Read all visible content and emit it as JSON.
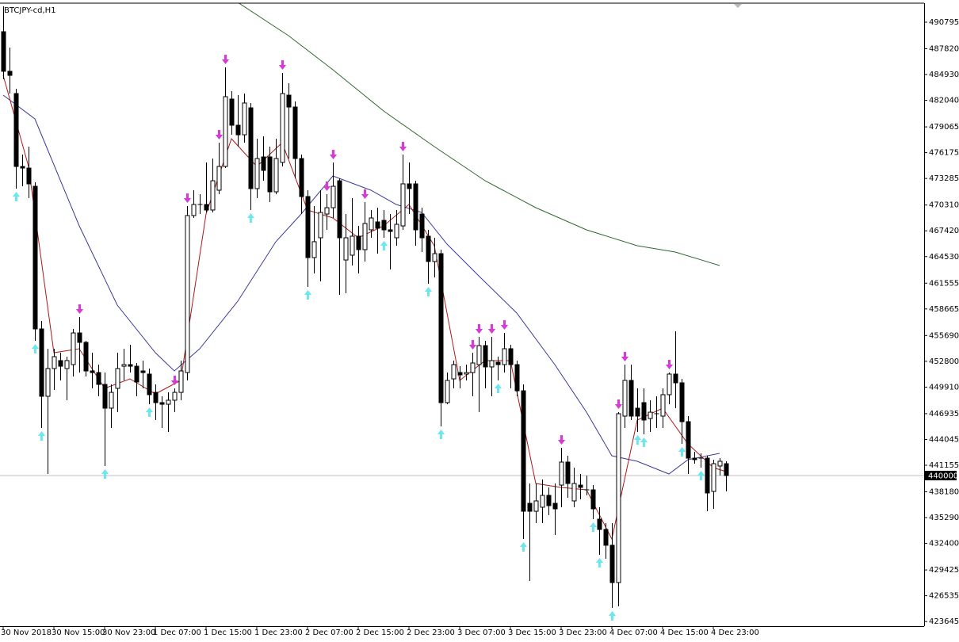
{
  "chart_data": {
    "type": "candlestick",
    "title": "BTCJPY-cd,H1",
    "ylim": [
      423128,
      493280
    ],
    "yticks": [
      490795,
      487820,
      484930,
      482040,
      479065,
      476175,
      473285,
      470310,
      467420,
      464530,
      461555,
      458665,
      455690,
      452800,
      449910,
      446935,
      444045,
      441155,
      438180,
      435290,
      432400,
      429425,
      426535,
      423645
    ],
    "price_line": 440000,
    "xticks": [
      {
        "value": 0,
        "label": "30 Nov 2018"
      },
      {
        "value": 8,
        "label": "30 Nov 15:00"
      },
      {
        "value": 16,
        "label": "30 Nov 23:00"
      },
      {
        "value": 24,
        "label": "1 Dec 07:00"
      },
      {
        "value": 32,
        "label": "1 Dec 15:00"
      },
      {
        "value": 40,
        "label": "1 Dec 23:00"
      },
      {
        "value": 48,
        "label": "2 Dec 07:00"
      },
      {
        "value": 56,
        "label": "2 Dec 15:00"
      },
      {
        "value": 64,
        "label": "2 Dec 23:00"
      },
      {
        "value": 72,
        "label": "3 Dec 07:00"
      },
      {
        "value": 80,
        "label": "3 Dec 15:00"
      },
      {
        "value": 88,
        "label": "3 Dec 23:00"
      },
      {
        "value": 96,
        "label": "4 Dec 07:00"
      },
      {
        "value": 104,
        "label": "4 Dec 15:00"
      },
      {
        "value": 112,
        "label": "4 Dec 23:00"
      }
    ],
    "ohlc": [
      [
        489730,
        492570,
        484400,
        485290
      ],
      [
        485290,
        487950,
        482800,
        484840
      ],
      [
        482800,
        483330,
        472150,
        474630
      ],
      [
        474630,
        475960,
        472410,
        474450
      ],
      [
        474450,
        476850,
        471080,
        472680
      ],
      [
        472410,
        472860,
        455100,
        456430
      ],
      [
        456430,
        457320,
        445330,
        448880
      ],
      [
        448880,
        454210,
        440180,
        451990
      ],
      [
        451990,
        454210,
        449590,
        453320
      ],
      [
        452880,
        453760,
        450660,
        452250
      ],
      [
        451990,
        453320,
        448440,
        452880
      ],
      [
        452430,
        456430,
        451100,
        455980
      ],
      [
        455980,
        457760,
        451540,
        454920
      ],
      [
        454920,
        455100,
        451100,
        451720
      ],
      [
        451720,
        453760,
        449770,
        451540
      ],
      [
        451540,
        452430,
        448880,
        450210
      ],
      [
        450210,
        451540,
        441070,
        447550
      ],
      [
        447550,
        450210,
        445330,
        449320
      ],
      [
        449770,
        453760,
        447100,
        451990
      ],
      [
        452250,
        454210,
        450660,
        452430
      ],
      [
        452430,
        454650,
        451540,
        452250
      ],
      [
        452250,
        452610,
        448880,
        450480
      ],
      [
        451720,
        452880,
        449770,
        451540
      ],
      [
        451370,
        451990,
        447990,
        449060
      ],
      [
        449320,
        450210,
        446220,
        448170
      ],
      [
        448170,
        448880,
        445330,
        447990
      ],
      [
        447990,
        449320,
        444880,
        448440
      ],
      [
        448440,
        449770,
        447100,
        449320
      ],
      [
        449320,
        452880,
        448440,
        451720
      ],
      [
        451540,
        470190,
        450660,
        469130
      ],
      [
        469130,
        471970,
        468860,
        470370
      ],
      [
        470370,
        471520,
        469300,
        470370
      ],
      [
        470370,
        475080,
        469480,
        469750
      ],
      [
        469750,
        475520,
        469480,
        473030
      ],
      [
        471970,
        477300,
        471520,
        474630
      ],
      [
        474630,
        485730,
        474450,
        482450
      ],
      [
        482180,
        483070,
        478180,
        479250
      ],
      [
        479250,
        482620,
        476850,
        478180
      ],
      [
        478180,
        482800,
        477300,
        481740
      ],
      [
        481200,
        481740,
        469750,
        472150
      ],
      [
        472150,
        477740,
        471080,
        475520
      ],
      [
        475700,
        478010,
        473030,
        474190
      ],
      [
        475700,
        476850,
        470640,
        471790
      ],
      [
        471790,
        477740,
        471520,
        475520
      ],
      [
        475080,
        485110,
        474630,
        482800
      ],
      [
        482620,
        483960,
        475520,
        481290
      ],
      [
        481290,
        481910,
        473300,
        475520
      ],
      [
        475520,
        475960,
        469300,
        471260
      ],
      [
        471260,
        471970,
        461130,
        464420
      ],
      [
        464420,
        470190,
        462640,
        466200
      ],
      [
        466640,
        471970,
        461760,
        469480
      ],
      [
        469300,
        471520,
        467530,
        470010
      ],
      [
        470010,
        475080,
        468860,
        472410
      ],
      [
        473030,
        473300,
        460250,
        466640
      ],
      [
        464150,
        469300,
        460420,
        466640
      ],
      [
        464690,
        471080,
        463530,
        466820
      ],
      [
        466820,
        467970,
        462640,
        465310
      ],
      [
        465310,
        470640,
        463980,
        468240
      ],
      [
        467530,
        469750,
        466640,
        468860
      ],
      [
        468420,
        470010,
        464860,
        467710
      ],
      [
        468590,
        469750,
        466640,
        467530
      ],
      [
        467530,
        469300,
        463090,
        467350
      ],
      [
        466640,
        469750,
        465750,
        468150
      ],
      [
        467970,
        475960,
        467530,
        472680
      ],
      [
        472680,
        475080,
        469300,
        472150
      ],
      [
        472680,
        473030,
        465750,
        467530
      ],
      [
        469300,
        470010,
        465040,
        466640
      ],
      [
        466820,
        467530,
        461490,
        463980
      ],
      [
        463980,
        466640,
        462200,
        464860
      ],
      [
        464860,
        465310,
        445510,
        448170
      ],
      [
        448170,
        451540,
        447990,
        450660
      ],
      [
        450830,
        452880,
        449770,
        452430
      ],
      [
        451540,
        452250,
        449770,
        451280
      ],
      [
        451370,
        452430,
        450660,
        451540
      ],
      [
        451540,
        453760,
        448880,
        452610
      ],
      [
        452430,
        455540,
        447100,
        454560
      ],
      [
        454560,
        455100,
        449770,
        452170
      ],
      [
        452170,
        455540,
        448880,
        452880
      ],
      [
        452700,
        453320,
        450660,
        452430
      ],
      [
        452430,
        455980,
        451540,
        454210
      ],
      [
        454210,
        454650,
        449770,
        452430
      ],
      [
        452430,
        452880,
        448880,
        449500
      ],
      [
        449500,
        450210,
        432900,
        436000
      ],
      [
        436890,
        439110,
        428190,
        436000
      ],
      [
        436000,
        439110,
        434670,
        437160
      ],
      [
        436450,
        439560,
        434670,
        437780
      ],
      [
        437780,
        438670,
        435560,
        436630
      ],
      [
        436890,
        439110,
        433340,
        436270
      ],
      [
        438930,
        443110,
        436450,
        441510
      ],
      [
        441510,
        442220,
        437510,
        439110
      ],
      [
        437160,
        440890,
        436450,
        439110
      ],
      [
        438930,
        440180,
        437340,
        438670
      ],
      [
        438400,
        440000,
        437780,
        438400
      ],
      [
        438400,
        438930,
        435120,
        436270
      ],
      [
        435120,
        436450,
        431120,
        433960
      ],
      [
        433960,
        434670,
        430680,
        432190
      ],
      [
        432190,
        434670,
        425170,
        428010
      ],
      [
        428010,
        447100,
        425350,
        446930
      ],
      [
        446660,
        452430,
        445330,
        450660
      ],
      [
        450660,
        452430,
        446220,
        446660
      ],
      [
        447550,
        449770,
        444880,
        446660
      ],
      [
        448170,
        449770,
        444620,
        446220
      ],
      [
        446390,
        448440,
        444880,
        447100
      ],
      [
        446930,
        448880,
        445330,
        446930
      ],
      [
        446660,
        449770,
        445330,
        449060
      ],
      [
        449060,
        451540,
        447990,
        451370
      ],
      [
        451370,
        456160,
        447550,
        450390
      ],
      [
        450390,
        450830,
        443550,
        446040
      ],
      [
        446040,
        446660,
        440180,
        441950
      ],
      [
        441950,
        442660,
        441330,
        441780
      ],
      [
        441950,
        442490,
        440890,
        441950
      ],
      [
        441950,
        442220,
        436000,
        438050
      ],
      [
        438220,
        441780,
        436270,
        441330
      ],
      [
        441070,
        441950,
        440000,
        441600
      ],
      [
        441330,
        441600,
        438220,
        440000
      ]
    ],
    "bull_color": "#ffffff",
    "bear_color": "#000000",
    "indicators": [
      {
        "color": "#2f6a2f",
        "index": [
          37,
          45,
          52,
          60,
          68,
          76,
          84,
          92,
          100,
          106,
          113
        ],
        "values": [
          493010,
          489280,
          485470,
          480850,
          476850,
          473030,
          470010,
          467530,
          465750,
          465040,
          463530
        ]
      },
      {
        "color": "#3a3a9a",
        "index": [
          0,
          5,
          12,
          18,
          24,
          27,
          31,
          37,
          43,
          47,
          52,
          58,
          62,
          66,
          70,
          75,
          81,
          87,
          92,
          96,
          100,
          105,
          108,
          113
        ],
        "values": [
          482620,
          479960,
          467970,
          459090,
          453760,
          451720,
          454210,
          459540,
          466200,
          469300,
          473570,
          471970,
          470370,
          469480,
          465930,
          462380,
          458200,
          452430,
          447100,
          442220,
          441600,
          440180,
          441780,
          442490
        ]
      },
      {
        "color": "#b01818",
        "index": [
          0,
          4,
          8,
          12,
          16,
          20,
          24,
          28,
          32,
          36,
          40,
          44,
          48,
          52,
          56,
          60,
          64,
          68,
          72,
          76,
          80,
          84,
          88,
          92,
          96,
          100,
          104,
          108,
          112,
          114
        ],
        "values": [
          484840,
          474630,
          453760,
          454210,
          449770,
          450830,
          449150,
          450660,
          469300,
          477740,
          474630,
          477300,
          469750,
          468860,
          466640,
          467970,
          470370,
          465750,
          450660,
          452880,
          452880,
          439110,
          438670,
          438400,
          432900,
          446220,
          447550,
          443550,
          440890,
          440440
        ]
      }
    ],
    "signals": {
      "down": [
        0,
        12,
        27,
        29,
        34,
        35,
        44,
        51,
        52,
        57,
        63,
        74,
        75,
        77,
        79,
        88,
        97,
        98,
        105
      ],
      "down_color": "#d63bd6",
      "up": [
        2,
        5,
        6,
        16,
        23,
        39,
        48,
        60,
        67,
        69,
        78,
        82,
        93,
        94,
        96,
        100,
        101,
        107,
        110
      ],
      "up_color": "#6fe6ee"
    }
  }
}
